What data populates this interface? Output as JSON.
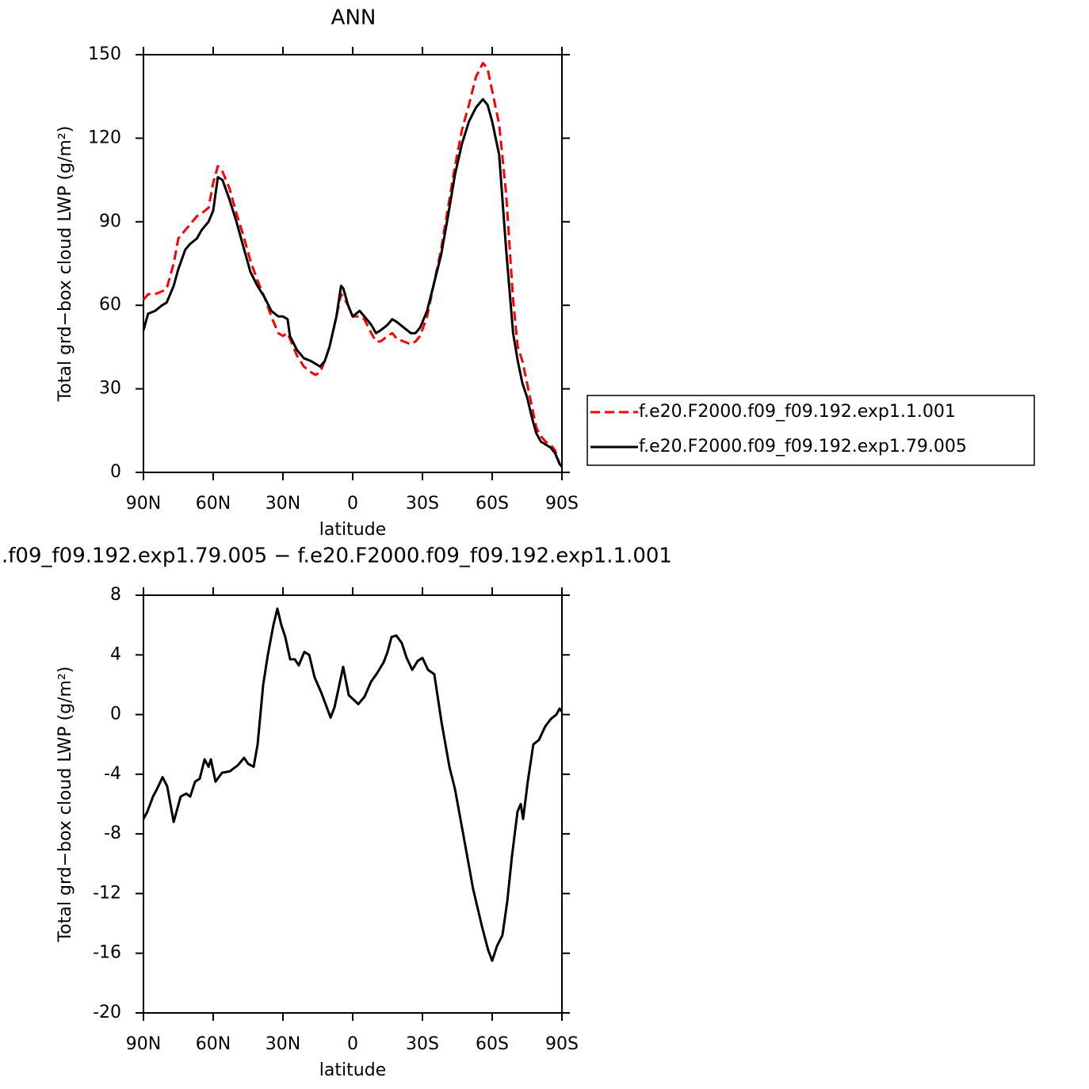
{
  "chart_data": [
    {
      "type": "line",
      "title": "ANN",
      "xlabel": "latitude",
      "ylabel": "Total grd−box cloud LWP (g/m²)",
      "x": [
        90,
        88,
        85,
        82,
        80,
        77,
        75,
        72,
        70,
        67,
        65,
        62,
        60,
        58,
        56,
        53,
        50,
        47,
        44,
        41,
        38,
        35,
        32,
        30,
        28,
        27,
        24,
        21,
        18,
        16,
        14,
        12,
        10,
        7,
        5,
        4,
        2,
        0,
        -3,
        -5,
        -8,
        -10,
        -12,
        -15,
        -17,
        -19,
        -22,
        -25,
        -27,
        -29,
        -32,
        -35,
        -38,
        -41,
        -44,
        -47,
        -50,
        -53,
        -56,
        -58,
        -60,
        -63,
        -66,
        -69,
        -71,
        -73,
        -75,
        -77,
        -79,
        -81,
        -83,
        -85,
        -87,
        -89,
        -90
      ],
      "series": [
        {
          "name": "f.e20.F2000.f09_f09.192.exp1.1.001",
          "color": "#ff0000",
          "dash": true,
          "values": [
            62,
            64,
            64,
            65,
            66,
            75,
            84,
            87,
            89,
            92,
            93,
            95,
            104,
            110,
            108,
            102,
            93,
            85,
            76,
            69,
            63,
            56,
            50,
            49,
            50,
            48,
            42,
            38,
            36,
            35,
            36,
            40,
            45,
            56,
            64,
            63,
            60,
            56,
            56,
            55,
            50,
            47,
            47,
            49,
            50,
            48,
            47,
            46,
            47,
            49,
            56,
            68,
            80,
            95,
            110,
            123,
            132,
            142,
            147,
            145,
            137,
            125,
            100,
            62,
            45,
            40,
            32,
            24,
            16,
            13,
            11,
            10,
            8,
            3,
            2
          ]
        },
        {
          "name": "f.e20.F2000.f09_f09.192.exp1.79.005",
          "color": "#000000",
          "dash": false,
          "values": [
            51,
            57,
            58,
            60,
            61,
            67,
            73,
            80,
            82,
            84,
            87,
            90,
            94,
            106,
            105,
            98,
            90,
            81,
            72,
            67,
            63,
            58,
            56,
            56,
            55,
            49,
            44,
            41,
            40,
            39,
            38,
            40,
            45,
            56,
            67,
            66,
            60,
            56,
            58,
            56,
            53,
            50,
            51,
            53,
            55,
            54,
            52,
            50,
            50,
            52,
            58,
            68,
            78,
            92,
            107,
            118,
            126,
            131,
            134,
            132,
            126,
            114,
            80,
            50,
            40,
            32,
            27,
            20,
            14,
            11,
            10,
            9,
            7,
            3,
            2
          ]
        }
      ],
      "xlim": [
        90,
        -90
      ],
      "xticks": [
        {
          "value": 90,
          "label": "90N"
        },
        {
          "value": 60,
          "label": "60N"
        },
        {
          "value": 30,
          "label": "30N"
        },
        0,
        {
          "value": -30,
          "label": "30S"
        },
        {
          "value": -60,
          "label": "60S"
        },
        {
          "value": -90,
          "label": "90S"
        }
      ],
      "ylim": [
        0,
        150
      ],
      "yticks": [
        0,
        30,
        60,
        90,
        120,
        150
      ],
      "legend": "right"
    },
    {
      "type": "line",
      "title": ".f09_f09.192.exp1.79.005 − f.e20.F2000.f09_f09.192.exp1.1.001",
      "xlabel": "latitude",
      "ylabel": "Total grd−box cloud LWP (g/m²)",
      "x": [
        90,
        88.3,
        85.9,
        84.2,
        81.8,
        79.8,
        77,
        74,
        71.6,
        69.9,
        67.8,
        65.8,
        63.7,
        62,
        61,
        59,
        56.2,
        52.8,
        49.4,
        46.7,
        45,
        42.6,
        40.9,
        38.5,
        36.5,
        34.1,
        32.4,
        30.7,
        29,
        26.9,
        24.9,
        23.2,
        20.8,
        18.7,
        16.4,
        13.6,
        11.9,
        9.5,
        7.8,
        4.1,
        1.7,
        -0.4,
        -2.4,
        -5.1,
        -7.9,
        -10.6,
        -13.3,
        -15,
        -16.7,
        -18.8,
        -21.1,
        -23.2,
        -25.6,
        -28,
        -30,
        -32.4,
        -35.1,
        -38.2,
        -41.6,
        -44,
        -47.4,
        -51.8,
        -55.6,
        -58.3,
        -60,
        -62.1,
        -64.4,
        -66.5,
        -68.5,
        -70.9,
        -72.3,
        -73.3,
        -75.3,
        -77.7,
        -80.1,
        -82.8,
        -85.2,
        -87.6,
        -89,
        -90
      ],
      "values": [
        -7,
        -6.5,
        -5.5,
        -5,
        -4.2,
        -4.8,
        -7.2,
        -5.5,
        -5.3,
        -5.5,
        -4.5,
        -4.3,
        -3,
        -3.5,
        -3,
        -4.5,
        -3.9,
        -3.8,
        -3.4,
        -2.9,
        -3.3,
        -3.5,
        -2,
        2,
        4,
        6,
        7.1,
        6,
        5.2,
        3.7,
        3.7,
        3.3,
        4.2,
        4,
        2.5,
        1.5,
        0.8,
        -0.2,
        0.5,
        3.2,
        1.3,
        1,
        0.7,
        1.2,
        2.2,
        2.8,
        3.5,
        4.2,
        5.2,
        5.3,
        4.8,
        3.8,
        3,
        3.6,
        3.8,
        3,
        2.7,
        -0.5,
        -3.5,
        -5,
        -7.9,
        -11.7,
        -14.2,
        -15.8,
        -16.5,
        -15.5,
        -14.8,
        -12.5,
        -9.5,
        -6.5,
        -6,
        -7,
        -4.5,
        -2,
        -1.7,
        -0.8,
        -0.3,
        0,
        0.4,
        0.2
      ],
      "color": "#000000",
      "xlim": [
        90,
        -90
      ],
      "xticks": [
        {
          "value": 90,
          "label": "90N"
        },
        {
          "value": 60,
          "label": "60N"
        },
        {
          "value": 30,
          "label": "30N"
        },
        0,
        {
          "value": -30,
          "label": "30S"
        },
        {
          "value": -60,
          "label": "60S"
        },
        {
          "value": -90,
          "label": "90S"
        }
      ],
      "ylim": [
        -20,
        8
      ],
      "yticks": [
        -20,
        -16,
        -12,
        -8,
        -4,
        0,
        4,
        8
      ]
    }
  ]
}
